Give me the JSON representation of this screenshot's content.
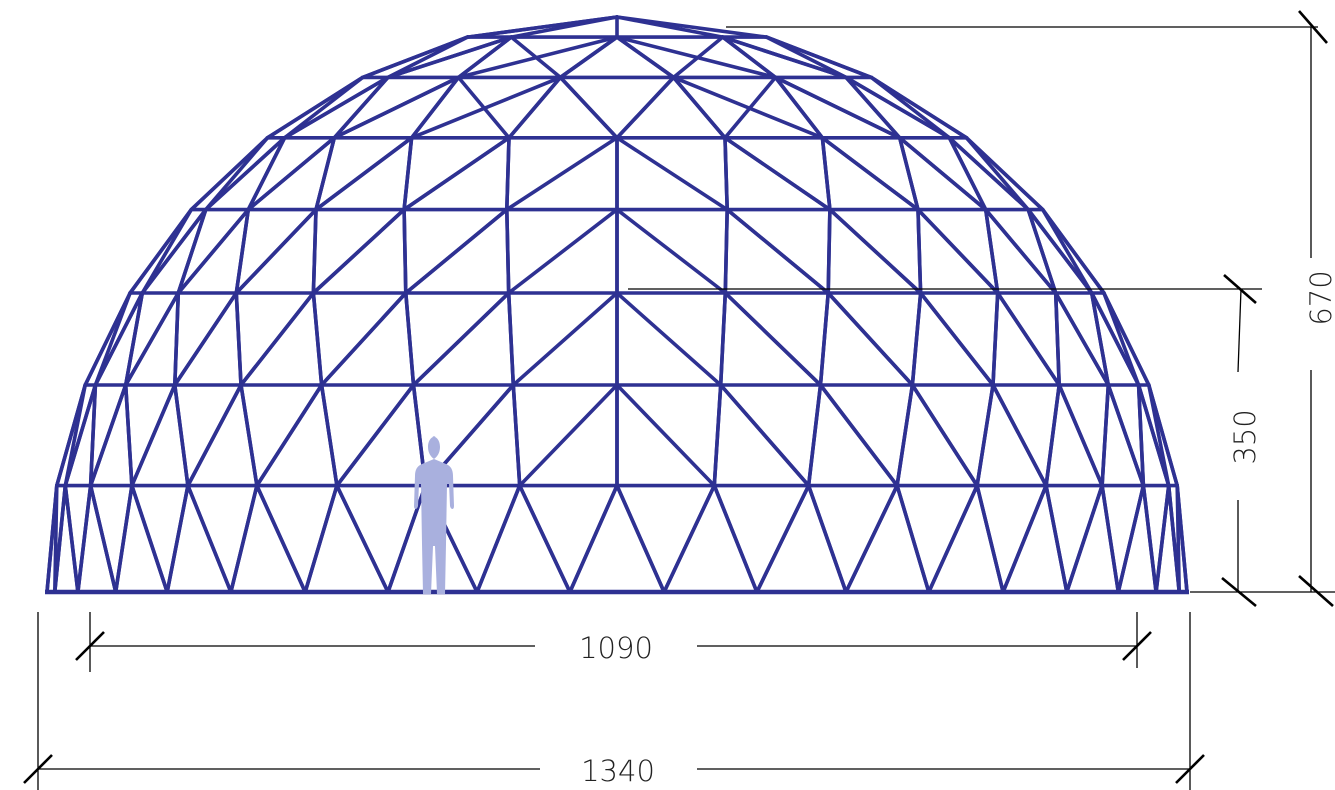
{
  "drawing": {
    "subject": "geodesic-dome-elevation",
    "strut_color": "#2e3192",
    "person_color": "#a9b0de",
    "line_color": "#000000"
  },
  "dimensions": {
    "overall_width": "1340",
    "inner_width": "1090",
    "total_height": "670",
    "ring_height": "350"
  }
}
